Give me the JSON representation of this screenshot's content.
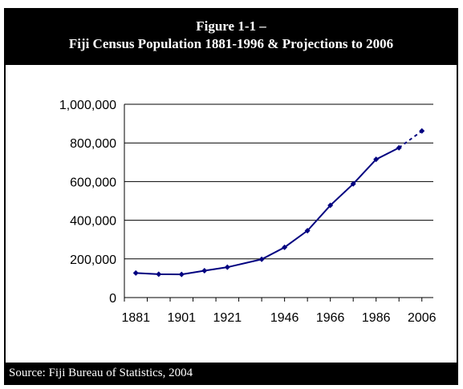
{
  "figure": {
    "title_line1": "Figure 1-1 –",
    "title_line2": "Fiji Census Population 1881-1996 & Projections to 2006",
    "source": "Source: Fiji Bureau of Statistics, 2004"
  },
  "chart_data": {
    "type": "line",
    "title": "Fiji Census Population 1881-1996 & Projections to 2006",
    "xlabel": "",
    "ylabel": "",
    "ylim": [
      0,
      1000000
    ],
    "yticks": [
      "0",
      "200,000",
      "400,000",
      "600,000",
      "800,000",
      "1,000,000"
    ],
    "xticks": [
      "1881",
      "1901",
      "1921",
      "1946",
      "1966",
      "1986",
      "2006"
    ],
    "grid": true,
    "line_color": "#000080",
    "series": [
      {
        "x": [
          1881,
          1891,
          1901,
          1911,
          1921,
          1936,
          1946,
          1956,
          1966,
          1976,
          1986,
          1996
        ],
        "values": [
          127000,
          121000,
          120000,
          139000,
          157000,
          198000,
          260000,
          346000,
          477000,
          588000,
          715000,
          775000
        ],
        "style": "solid"
      },
      {
        "x": [
          1996,
          2006
        ],
        "values": [
          775000,
          862000
        ],
        "style": "dashed"
      }
    ]
  }
}
